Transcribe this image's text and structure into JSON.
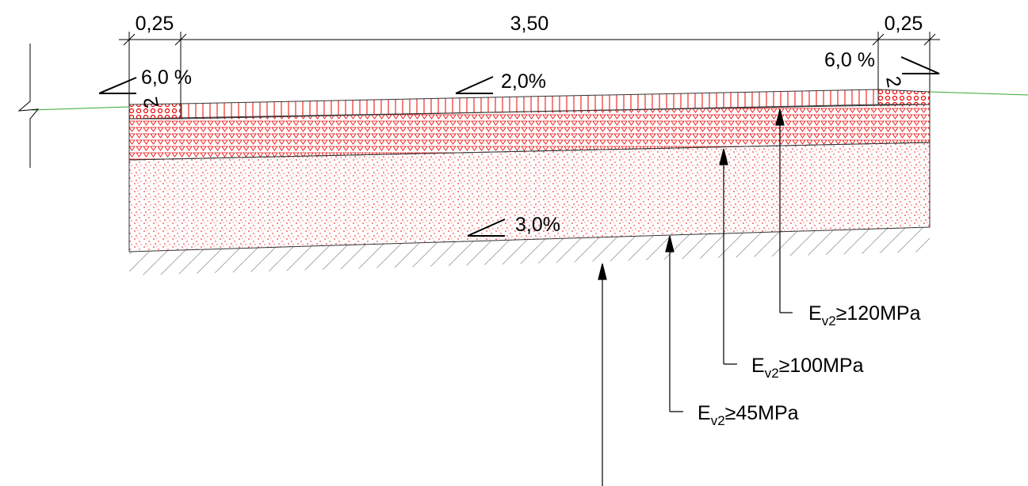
{
  "dimensions": [
    "0,25",
    "3,50",
    "0,25"
  ],
  "slopes": [
    "6,0 %",
    "2,0%",
    "6,0 %",
    "3,0%"
  ],
  "slope_ratios": [
    "2",
    "2"
  ],
  "layers": [
    {
      "symbol": "E",
      "subscript": "v2",
      "requirement": "≥120MPa"
    },
    {
      "symbol": "E",
      "subscript": "v2",
      "requirement": "≥100MPa"
    },
    {
      "symbol": "E",
      "subscript": "v2",
      "requirement": "≥45MPa"
    }
  ]
}
